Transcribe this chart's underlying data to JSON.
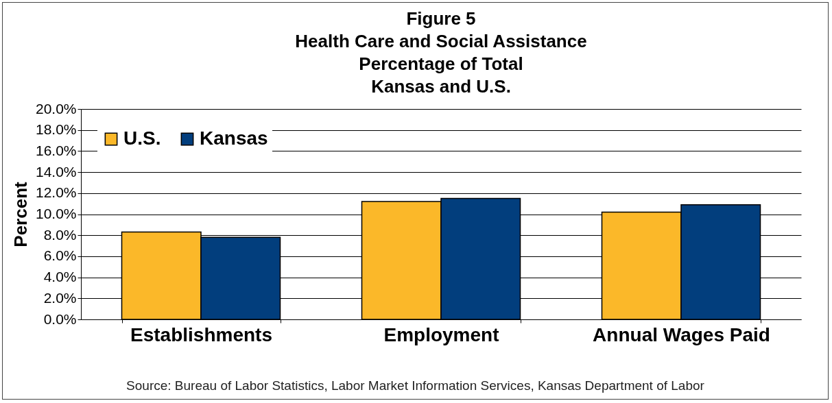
{
  "chart_data": {
    "type": "bar",
    "title": "Figure 5\nHealth Care and Social Assistance\nPercentage of Total\nKansas and U.S.",
    "ylabel": "Percent",
    "categories": [
      "Establishments",
      "Employment",
      "Annual Wages Paid"
    ],
    "series": [
      {
        "name": "U.S.",
        "color": "#fbb829",
        "values": [
          8.3,
          11.2,
          10.2
        ]
      },
      {
        "name": "Kansas",
        "color": "#023e7d",
        "values": [
          7.8,
          11.5,
          10.9
        ]
      }
    ],
    "ylim": [
      0,
      20
    ],
    "yticks": [
      {
        "value": 0,
        "label": "0.0%"
      },
      {
        "value": 2,
        "label": "2.0%"
      },
      {
        "value": 4,
        "label": "4.0%"
      },
      {
        "value": 6,
        "label": "6.0%"
      },
      {
        "value": 8,
        "label": "8.0%"
      },
      {
        "value": 10,
        "label": "10.0%"
      },
      {
        "value": 12,
        "label": "12.0%"
      },
      {
        "value": 14,
        "label": "14.0%"
      },
      {
        "value": 16,
        "label": "16.0%"
      },
      {
        "value": 18,
        "label": "18.0%"
      },
      {
        "value": 20,
        "label": "20.0%"
      }
    ],
    "grid": "y",
    "legend": "top left",
    "annotations": [
      "Source: Bureau of Labor Statistics, Labor Market Information Services, Kansas Department of Labor"
    ]
  }
}
